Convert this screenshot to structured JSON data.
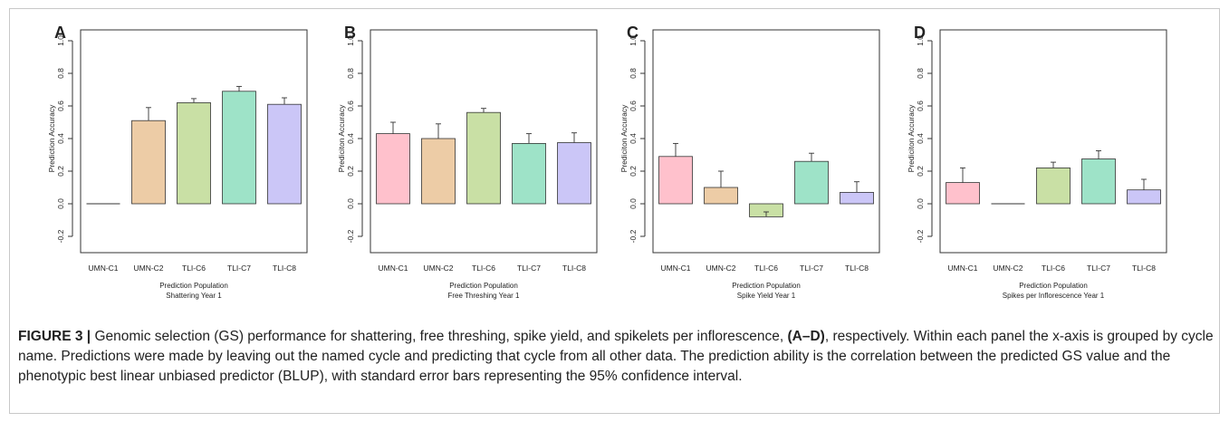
{
  "chart_data": [
    {
      "type": "bar",
      "panel": "A",
      "categories": [
        "UMN-C1",
        "UMN-C2",
        "TLI-C6",
        "TLI-C7",
        "TLI-C8"
      ],
      "values": [
        0.0,
        0.51,
        0.62,
        0.69,
        0.61
      ],
      "errors": [
        0.0,
        0.08,
        0.025,
        0.03,
        0.04
      ],
      "ylabel": "Prediction Accuracy",
      "xlabel": "Prediction Population",
      "trait": "Shattering Year 1",
      "ylim": [
        -0.2,
        1.0
      ],
      "yticks": [
        "-0.2",
        "0.0",
        "0.2",
        "0.4",
        "0.6",
        "0.8",
        "1.0"
      ]
    },
    {
      "type": "bar",
      "panel": "B",
      "categories": [
        "UMN-C1",
        "UMN-C2",
        "TLI-C6",
        "TLI-C7",
        "TLI-C8"
      ],
      "values": [
        0.43,
        0.4,
        0.56,
        0.37,
        0.375
      ],
      "errors": [
        0.07,
        0.09,
        0.025,
        0.06,
        0.06
      ],
      "ylabel": "Prediciton Accuracy",
      "xlabel": "Prediction Population",
      "trait": "Free Threshing Year 1",
      "ylim": [
        -0.2,
        1.0
      ],
      "yticks": [
        "-0.2",
        "0.0",
        "0.2",
        "0.4",
        "0.6",
        "0.8",
        "1.0"
      ]
    },
    {
      "type": "bar",
      "panel": "C",
      "categories": [
        "UMN-C1",
        "UMN-C2",
        "TLI-C6",
        "TLI-C7",
        "TLI-C8"
      ],
      "values": [
        0.29,
        0.1,
        -0.08,
        0.26,
        0.07
      ],
      "errors": [
        0.08,
        0.1,
        0.03,
        0.05,
        0.065
      ],
      "ylabel": "Prediciton Accuracy",
      "xlabel": "Prediction Population",
      "trait": "Spike Yield Year 1",
      "ylim": [
        -0.2,
        1.0
      ],
      "yticks": [
        "-0.2",
        "0.0",
        "0.2",
        "0.4",
        "0.6",
        "0.8",
        "1.0"
      ]
    },
    {
      "type": "bar",
      "panel": "D",
      "categories": [
        "UMN-C1",
        "UMN-C2",
        "TLI-C6",
        "TLI-C7",
        "TLI-C8"
      ],
      "values": [
        0.13,
        0.0,
        0.22,
        0.275,
        0.085
      ],
      "errors": [
        0.09,
        0.0,
        0.035,
        0.05,
        0.065
      ],
      "ylabel": "Prediciton Accuracy",
      "xlabel": "Prediction Population",
      "trait": "Spikes per Inflorescence Year 1",
      "ylim": [
        -0.2,
        1.0
      ],
      "yticks": [
        "-0.2",
        "0.0",
        "0.2",
        "0.4",
        "0.6",
        "0.8",
        "1.0"
      ]
    }
  ],
  "colors": {
    "UMN-C1": "#ffc1cc",
    "UMN-C2": "#edcca6",
    "TLI-C6": "#c9e0a5",
    "TLI-C7": "#9ee3c8",
    "TLI-C8": "#cbc6f7"
  },
  "caption": {
    "label": "FIGURE 3 |",
    "text_part1": " Genomic selection (GS) performance for shattering, free threshing, spike yield, and spikelets per inflorescence, ",
    "panels": "(A–D)",
    "text_part2": ", respectively. Within each panel the x-axis is grouped by cycle name. Predictions were made by leaving out the named cycle and predicting that cycle from all other data. The prediction ability is the correlation between the predicted GS value and the phenotypic best linear unbiased predictor (BLUP), with standard error bars representing the 95% confidence interval."
  }
}
